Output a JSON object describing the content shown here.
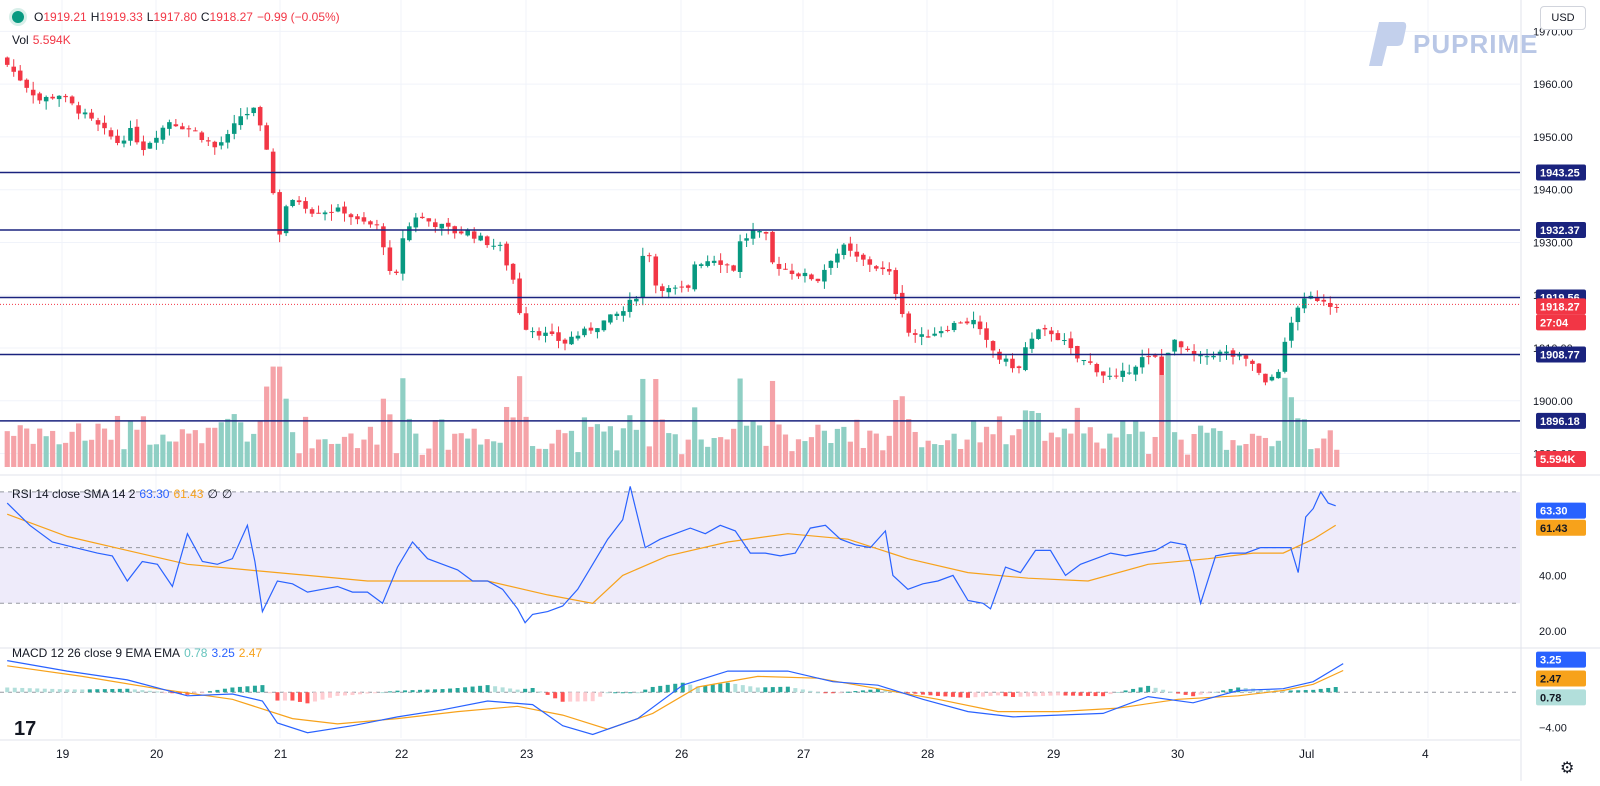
{
  "header": {
    "ohlc": [
      {
        "label": "O",
        "value": "1919.21"
      },
      {
        "label": "H",
        "value": "1919.33"
      },
      {
        "label": "L",
        "value": "1917.80"
      },
      {
        "label": "C",
        "value": "1918.27"
      }
    ],
    "change": "−0.99 (−0.05%)",
    "vol_label": "Vol",
    "vol_value": "5.594K",
    "currency": "USD"
  },
  "brand": {
    "logo_text": "PUPRIME",
    "logo_icon": "pu-logo-icon",
    "tv_logo": "17"
  },
  "colors": {
    "up": "#089981",
    "down": "#f23645",
    "vol_up": "#8fcfc4",
    "vol_down": "#f5a3a8",
    "level": "#1a237e",
    "rsi": "#2962ff",
    "rsi_sma": "#f7a21b",
    "macd": "#2962ff",
    "signal": "#f7a21b",
    "rsi_band": "#eeebfa"
  },
  "chart_data": [
    {
      "type": "candlestick",
      "x_tick_labels": [
        "19",
        "20",
        "21",
        "22",
        "23",
        "26",
        "27",
        "28",
        "29",
        "30",
        "Jul",
        "4"
      ],
      "y_ticks": [
        1890,
        1900,
        1910,
        1920,
        1930,
        1940,
        1950,
        1960,
        1970
      ],
      "ylim": [
        1886.5,
        1975
      ],
      "y_tick_labels": [
        "1890.00",
        "1900.00",
        "1910.00",
        "1920.00",
        "1930.00",
        "1940.00",
        "1950.00",
        "1960.00",
        "1970.00"
      ],
      "horizontal_levels": [
        {
          "label": "1943.25",
          "value": 1943.25
        },
        {
          "label": "1932.37",
          "value": 1932.37
        },
        {
          "label": "1919.56",
          "value": 1919.56
        },
        {
          "label": "1908.77",
          "value": 1908.77
        },
        {
          "label": "1896.18",
          "value": 1896.18
        }
      ],
      "last_price": {
        "label": "1918.27",
        "value": 1918.27,
        "countdown": "27:04"
      },
      "volume_label": "5.594K",
      "price_path": [
        [
          0,
          1965
        ],
        [
          3,
          1961
        ],
        [
          6,
          1957
        ],
        [
          9,
          1958
        ],
        [
          12,
          1955
        ],
        [
          15,
          1952
        ],
        [
          18,
          1949
        ],
        [
          20,
          1951
        ],
        [
          22,
          1948
        ],
        [
          26,
          1953
        ],
        [
          28,
          1952
        ],
        [
          30,
          1951
        ],
        [
          33,
          1948
        ],
        [
          35,
          1950
        ],
        [
          37,
          1954
        ],
        [
          39,
          1955
        ],
        [
          41,
          1948
        ],
        [
          42.5,
          1935
        ],
        [
          43.3,
          1930
        ],
        [
          44,
          1937
        ],
        [
          46,
          1938
        ],
        [
          48,
          1936
        ],
        [
          50,
          1936
        ],
        [
          53,
          1936
        ],
        [
          55,
          1934
        ],
        [
          58,
          1933
        ],
        [
          59.5,
          1928
        ],
        [
          60.5,
          1920
        ],
        [
          62,
          1931
        ],
        [
          64,
          1935
        ],
        [
          66,
          1934
        ],
        [
          68,
          1933
        ],
        [
          70,
          1932
        ],
        [
          72,
          1932
        ],
        [
          75,
          1930
        ],
        [
          77,
          1929
        ],
        [
          79,
          1923
        ],
        [
          80,
          1917
        ],
        [
          81,
          1914
        ],
        [
          83,
          1913
        ],
        [
          85,
          1912
        ],
        [
          87,
          1911
        ],
        [
          88,
          1912
        ],
        [
          90,
          1913
        ],
        [
          93,
          1915
        ],
        [
          96,
          1917
        ],
        [
          98,
          1920
        ],
        [
          99.5,
          1931
        ],
        [
          101,
          1922
        ],
        [
          103,
          1921
        ],
        [
          106,
          1921
        ],
        [
          107,
          1926
        ],
        [
          110,
          1927
        ],
        [
          113,
          1925
        ],
        [
          114,
          1930
        ],
        [
          116,
          1932
        ],
        [
          118,
          1931
        ],
        [
          119,
          1926
        ],
        [
          121,
          1925
        ],
        [
          123,
          1924
        ],
        [
          126,
          1923
        ],
        [
          128,
          1927
        ],
        [
          130,
          1929
        ],
        [
          132,
          1927
        ],
        [
          134,
          1926
        ],
        [
          137,
          1924
        ],
        [
          138.5,
          1919
        ],
        [
          140,
          1913
        ],
        [
          142,
          1912
        ],
        [
          144,
          1913
        ],
        [
          146,
          1914
        ],
        [
          148,
          1915
        ],
        [
          150,
          1915
        ],
        [
          152,
          1911
        ],
        [
          154,
          1908
        ],
        [
          157,
          1906
        ],
        [
          158,
          1910
        ],
        [
          160,
          1913
        ],
        [
          162,
          1913
        ],
        [
          164,
          1911
        ],
        [
          166,
          1908
        ],
        [
          168,
          1907
        ],
        [
          170,
          1905
        ],
        [
          172,
          1904
        ],
        [
          174,
          1906
        ],
        [
          176,
          1908
        ],
        [
          178,
          1908
        ],
        [
          178.8,
          1897
        ],
        [
          179.5,
          1909
        ],
        [
          181,
          1911
        ],
        [
          183,
          1909
        ],
        [
          185,
          1908
        ],
        [
          187,
          1909
        ],
        [
          189,
          1909
        ],
        [
          191,
          1908
        ],
        [
          193,
          1907
        ],
        [
          195,
          1903
        ],
        [
          197,
          1906
        ],
        [
          198.5,
          1913
        ],
        [
          200,
          1918
        ],
        [
          202,
          1919.5
        ],
        [
          204,
          1919.2
        ],
        [
          205,
          1918.3
        ]
      ],
      "candle_count": 206
    },
    {
      "type": "line",
      "indicator": "RSI",
      "title": "RSI 14 close SMA 14 2",
      "values_text": [
        {
          "label": "63.30",
          "color": "rsi"
        },
        {
          "label": "61.43",
          "color": "rsi_sma"
        },
        {
          "label": "∅",
          "color": "muted"
        },
        {
          "label": "∅",
          "color": "muted"
        }
      ],
      "ylim": [
        15,
        75
      ],
      "bands": [
        30,
        70
      ],
      "y_ticks": [
        20,
        40
      ],
      "y_tick_labels": [
        "20.00",
        "40.00"
      ],
      "rsi_path": [
        [
          0,
          66
        ],
        [
          3,
          58
        ],
        [
          6,
          52
        ],
        [
          9,
          50
        ],
        [
          12,
          48
        ],
        [
          14,
          47
        ],
        [
          16,
          38
        ],
        [
          18,
          45
        ],
        [
          20,
          44
        ],
        [
          22,
          36
        ],
        [
          24,
          55
        ],
        [
          26,
          45
        ],
        [
          28,
          44
        ],
        [
          30,
          46
        ],
        [
          32,
          58
        ],
        [
          33,
          45
        ],
        [
          34,
          27
        ],
        [
          36,
          38
        ],
        [
          38,
          37
        ],
        [
          40,
          34
        ],
        [
          42,
          35
        ],
        [
          44,
          36
        ],
        [
          46,
          34
        ],
        [
          48,
          34
        ],
        [
          50,
          30
        ],
        [
          52,
          43
        ],
        [
          54,
          52
        ],
        [
          56,
          46
        ],
        [
          58,
          44
        ],
        [
          60,
          42
        ],
        [
          62,
          38
        ],
        [
          64,
          38
        ],
        [
          66,
          35
        ],
        [
          68,
          28
        ],
        [
          69,
          23
        ],
        [
          70,
          26
        ],
        [
          72,
          27
        ],
        [
          74,
          29
        ],
        [
          76,
          35
        ],
        [
          78,
          44
        ],
        [
          80,
          53
        ],
        [
          82,
          60
        ],
        [
          83,
          72
        ],
        [
          85,
          50
        ],
        [
          87,
          53
        ],
        [
          89,
          55
        ],
        [
          91,
          57
        ],
        [
          93,
          55
        ],
        [
          95,
          58
        ],
        [
          97,
          56
        ],
        [
          99,
          48
        ],
        [
          101,
          48
        ],
        [
          103,
          47
        ],
        [
          105,
          48
        ],
        [
          107,
          57
        ],
        [
          109,
          58
        ],
        [
          111,
          53
        ],
        [
          113,
          51
        ],
        [
          115,
          50
        ],
        [
          117,
          56
        ],
        [
          118,
          40
        ],
        [
          120,
          35
        ],
        [
          122,
          37
        ],
        [
          124,
          38
        ],
        [
          126,
          40
        ],
        [
          128,
          31
        ],
        [
          130,
          30
        ],
        [
          131,
          28
        ],
        [
          133,
          43
        ],
        [
          135,
          41
        ],
        [
          137,
          49
        ],
        [
          139,
          49
        ],
        [
          141,
          40
        ],
        [
          143,
          44
        ],
        [
          145,
          46
        ],
        [
          147,
          48
        ],
        [
          149,
          47
        ],
        [
          151,
          48
        ],
        [
          153,
          49
        ],
        [
          155,
          52
        ],
        [
          157,
          51
        ],
        [
          158,
          42
        ],
        [
          159,
          30
        ],
        [
          161,
          47
        ],
        [
          163,
          48
        ],
        [
          165,
          48
        ],
        [
          167,
          50
        ],
        [
          169,
          50
        ],
        [
          171,
          50
        ],
        [
          172,
          41
        ],
        [
          173,
          61
        ],
        [
          174,
          64
        ],
        [
          175,
          70
        ],
        [
          176,
          66
        ],
        [
          177,
          65
        ]
      ],
      "sma_path": [
        [
          0,
          62
        ],
        [
          8,
          54
        ],
        [
          16,
          49
        ],
        [
          24,
          44
        ],
        [
          32,
          42
        ],
        [
          40,
          40
        ],
        [
          48,
          38
        ],
        [
          56,
          38
        ],
        [
          64,
          38
        ],
        [
          72,
          33
        ],
        [
          78,
          30
        ],
        [
          82,
          40
        ],
        [
          88,
          47
        ],
        [
          96,
          52
        ],
        [
          104,
          55
        ],
        [
          112,
          53
        ],
        [
          120,
          46
        ],
        [
          128,
          41
        ],
        [
          136,
          39
        ],
        [
          144,
          38
        ],
        [
          152,
          44
        ],
        [
          160,
          46
        ],
        [
          166,
          48
        ],
        [
          170,
          48
        ],
        [
          174,
          53
        ],
        [
          177,
          58
        ]
      ]
    },
    {
      "type": "line",
      "indicator": "MACD",
      "title": "MACD 12 26 close 9 EMA EMA",
      "values_text": [
        {
          "label": "0.78",
          "color": "teal"
        },
        {
          "label": "3.25",
          "color": "macd"
        },
        {
          "label": "2.47",
          "color": "signal"
        }
      ],
      "ylim": [
        -5.2,
        4.8
      ],
      "y_ticks": [
        -4
      ],
      "y_tick_labels": [
        "−4.00"
      ],
      "last_labels": [
        {
          "label": "3.25",
          "value": 3.25,
          "color": "macd"
        },
        {
          "label": "2.47",
          "value": 2.47,
          "color": "signal"
        },
        {
          "label": "0.78",
          "value": 0.78,
          "color": "teal"
        }
      ],
      "macd_path": [
        [
          0,
          3.6
        ],
        [
          8,
          2.4
        ],
        [
          16,
          1.4
        ],
        [
          24,
          -0.4
        ],
        [
          30,
          -0.2
        ],
        [
          34,
          -1.0
        ],
        [
          36,
          -3.5
        ],
        [
          40,
          -4.6
        ],
        [
          46,
          -3.8
        ],
        [
          52,
          -2.8
        ],
        [
          58,
          -2.0
        ],
        [
          64,
          -1.0
        ],
        [
          70,
          -1.4
        ],
        [
          74,
          -3.8
        ],
        [
          78,
          -4.8
        ],
        [
          84,
          -3.0
        ],
        [
          90,
          0.8
        ],
        [
          96,
          2.4
        ],
        [
          104,
          2.4
        ],
        [
          110,
          1.2
        ],
        [
          116,
          0.8
        ],
        [
          122,
          -0.8
        ],
        [
          128,
          -2.2
        ],
        [
          134,
          -2.8
        ],
        [
          140,
          -2.6
        ],
        [
          146,
          -2.4
        ],
        [
          152,
          -0.5
        ],
        [
          158,
          -1.2
        ],
        [
          164,
          0.2
        ],
        [
          170,
          0.4
        ],
        [
          174,
          1.2
        ],
        [
          178,
          3.25
        ]
      ],
      "signal_path": [
        [
          0,
          3.0
        ],
        [
          10,
          1.8
        ],
        [
          20,
          0.4
        ],
        [
          30,
          -0.8
        ],
        [
          38,
          -3.0
        ],
        [
          44,
          -3.6
        ],
        [
          52,
          -3.0
        ],
        [
          60,
          -2.2
        ],
        [
          68,
          -1.6
        ],
        [
          74,
          -2.6
        ],
        [
          80,
          -4.2
        ],
        [
          86,
          -2.4
        ],
        [
          92,
          0.6
        ],
        [
          100,
          1.8
        ],
        [
          108,
          1.6
        ],
        [
          116,
          0.4
        ],
        [
          124,
          -0.8
        ],
        [
          132,
          -2.2
        ],
        [
          140,
          -2.2
        ],
        [
          148,
          -1.8
        ],
        [
          156,
          -0.8
        ],
        [
          164,
          -0.4
        ],
        [
          170,
          0.2
        ],
        [
          174,
          0.9
        ],
        [
          178,
          2.47
        ]
      ]
    }
  ]
}
